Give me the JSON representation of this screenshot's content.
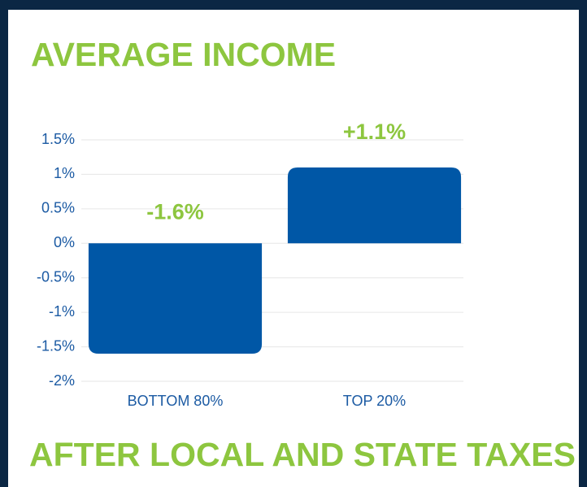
{
  "chart_data": {
    "type": "bar",
    "title": "AVERAGE INCOME",
    "subtitle": "AFTER LOCAL AND STATE TAXES",
    "categories": [
      "BOTTOM 80%",
      "TOP 20%"
    ],
    "values": [
      -1.6,
      1.1
    ],
    "value_labels": [
      "-1.6%",
      "+1.1%"
    ],
    "color": "#0057a6",
    "label_color": "#8dc63f",
    "ylim": [
      -2,
      1.5
    ],
    "yticks": [
      {
        "value": -2,
        "label": "-2%"
      },
      {
        "value": -1.5,
        "label": "-1.5%"
      },
      {
        "value": -1,
        "label": "-1%"
      },
      {
        "value": -0.5,
        "label": "-0.5%"
      },
      {
        "value": 0,
        "label": "0%"
      },
      {
        "value": 0.5,
        "label": "0.5%"
      },
      {
        "value": 1,
        "label": "1%"
      },
      {
        "value": 1.5,
        "label": "1.5%"
      }
    ],
    "grid": true
  }
}
